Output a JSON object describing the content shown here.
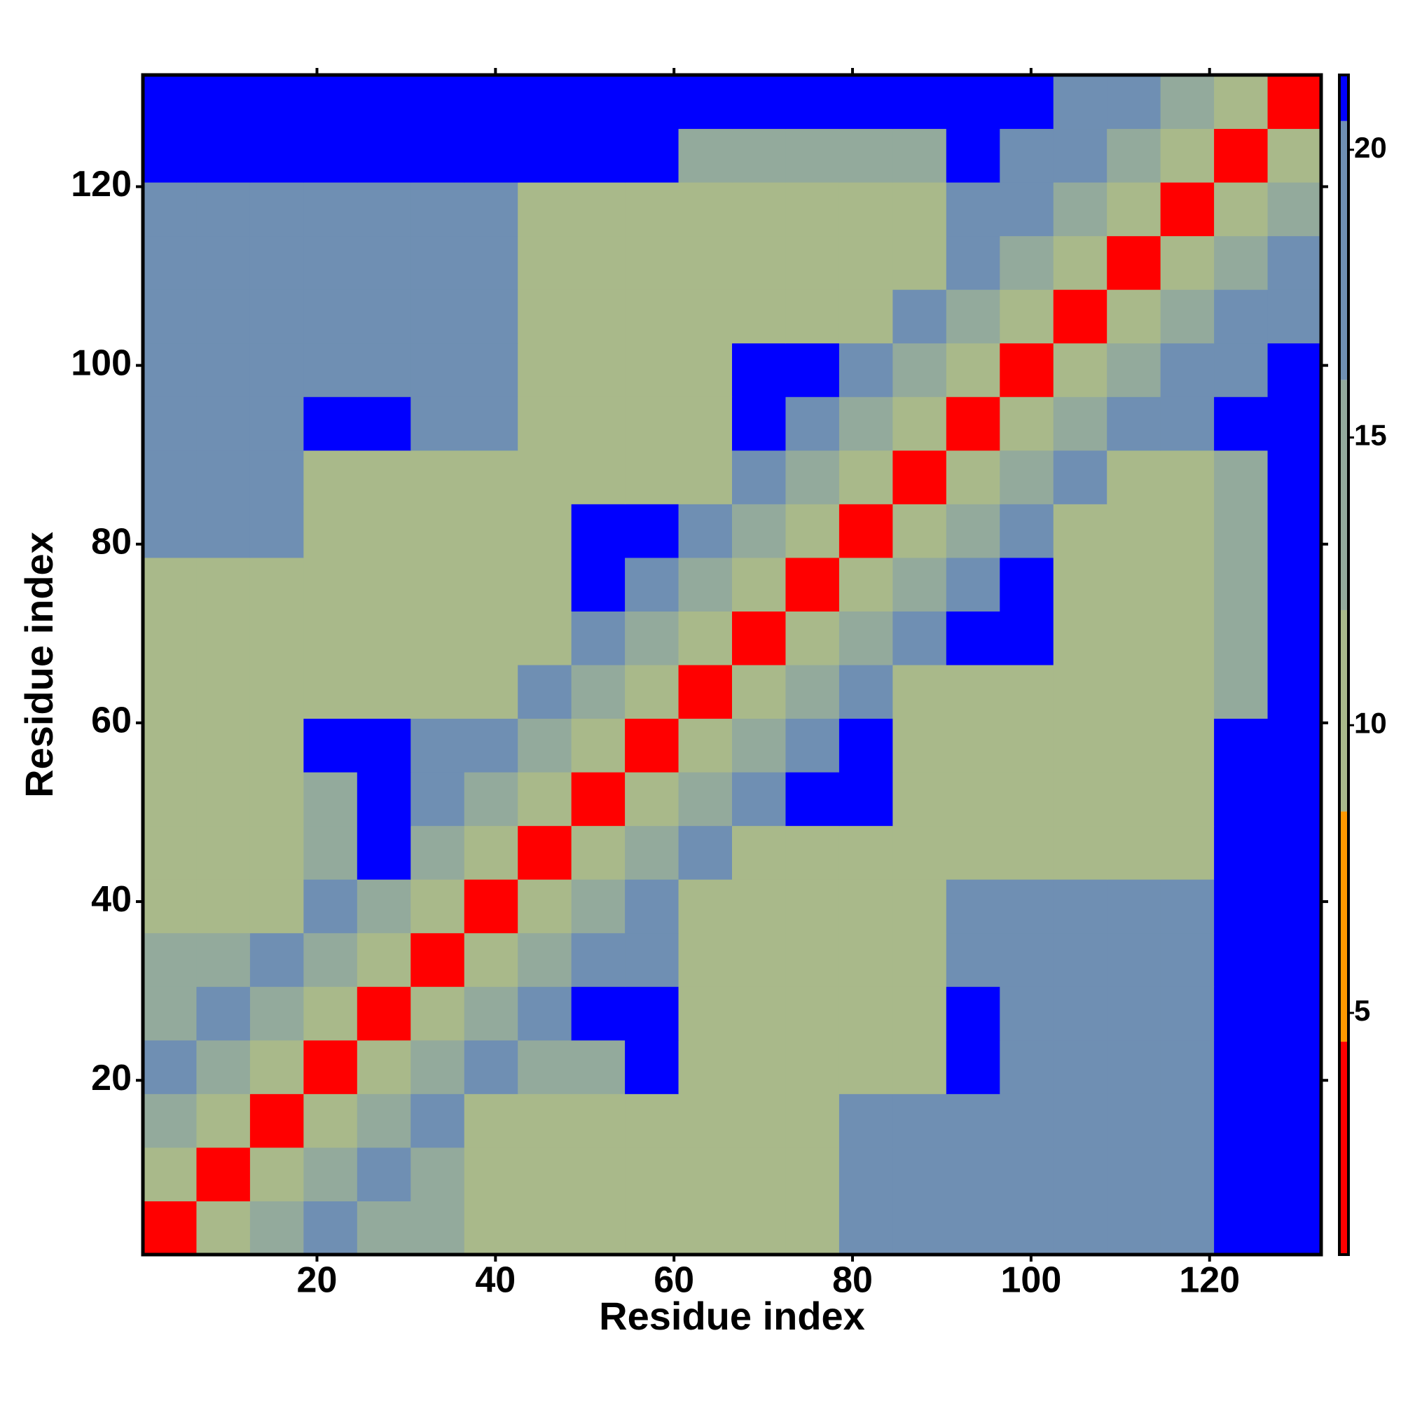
{
  "chart_data": {
    "type": "heatmap",
    "xlabel": "Residue index",
    "ylabel": "Residue index",
    "x": [
      3.5,
      9.5,
      15.5,
      21.5,
      27.5,
      33.5,
      39.5,
      45.5,
      51.5,
      57.5,
      63.5,
      69.5,
      75.5,
      81.5,
      87.5,
      93.5,
      99.5,
      105.5,
      111.5,
      117.5,
      123.5,
      129.5
    ],
    "y": [
      3.5,
      9.5,
      15.5,
      21.5,
      27.5,
      33.5,
      39.5,
      45.5,
      51.5,
      57.5,
      63.5,
      69.5,
      75.5,
      81.5,
      87.5,
      93.5,
      99.5,
      105.5,
      111.5,
      117.5,
      123.5,
      129.5
    ],
    "xlim": [
      0.5,
      132.5
    ],
    "ylim": [
      0.5,
      132.5
    ],
    "xticks": [
      20,
      40,
      60,
      80,
      100,
      120
    ],
    "yticks": [
      20,
      40,
      60,
      80,
      100,
      120
    ],
    "values": [
      [
        4,
        9,
        13,
        17,
        13,
        13,
        12,
        12,
        12,
        12,
        12,
        12,
        12,
        19,
        19,
        19,
        18,
        18,
        18,
        18,
        21,
        21
      ],
      [
        9,
        4,
        9,
        13,
        17,
        13,
        12,
        12,
        12,
        9,
        12,
        12,
        12,
        19,
        19,
        19,
        18,
        18,
        18,
        18,
        21,
        21
      ],
      [
        13,
        9,
        4,
        9,
        13,
        17,
        12,
        12,
        12,
        9,
        12,
        12,
        12,
        19,
        19,
        19,
        18,
        18,
        18,
        18,
        21,
        21
      ],
      [
        17,
        13,
        9,
        4,
        9,
        13,
        17,
        13,
        13,
        21,
        12,
        12,
        12,
        12,
        12,
        21,
        18,
        18,
        18,
        18,
        21,
        21
      ],
      [
        13,
        17,
        13,
        9,
        4,
        9,
        13,
        17,
        21,
        21,
        12,
        12,
        12,
        12,
        12,
        21,
        18,
        18,
        18,
        18,
        21,
        21
      ],
      [
        13,
        13,
        17,
        13,
        9,
        4,
        9,
        13,
        17,
        19,
        12,
        12,
        12,
        12,
        12,
        18,
        18,
        18,
        18,
        18,
        21,
        21
      ],
      [
        12,
        12,
        12,
        17,
        13,
        9,
        4,
        9,
        13,
        17,
        12,
        12,
        12,
        12,
        12,
        18,
        18,
        18,
        18,
        18,
        21,
        21
      ],
      [
        12,
        12,
        12,
        13,
        21,
        13,
        9,
        4,
        9,
        13,
        17,
        12,
        12,
        12,
        12,
        12,
        12,
        12,
        12,
        12,
        21,
        21
      ],
      [
        12,
        12,
        12,
        13,
        21,
        17,
        13,
        9,
        4,
        9,
        13,
        17,
        21,
        21,
        12,
        12,
        12,
        12,
        12,
        12,
        21,
        21
      ],
      [
        12,
        9,
        9,
        21,
        21,
        19,
        17,
        13,
        9,
        4,
        9,
        13,
        17,
        21,
        12,
        12,
        9,
        9,
        12,
        12,
        21,
        21
      ],
      [
        12,
        12,
        12,
        12,
        12,
        12,
        12,
        17,
        13,
        9,
        4,
        9,
        13,
        17,
        12,
        12,
        9,
        9,
        12,
        12,
        16,
        21
      ],
      [
        12,
        12,
        12,
        12,
        12,
        12,
        12,
        12,
        17,
        13,
        9,
        4,
        9,
        13,
        17,
        21,
        21,
        12,
        12,
        12,
        16,
        21
      ],
      [
        12,
        12,
        12,
        12,
        12,
        12,
        12,
        12,
        21,
        17,
        13,
        9,
        4,
        9,
        13,
        17,
        21,
        12,
        12,
        12,
        16,
        21
      ],
      [
        19,
        19,
        19,
        12,
        12,
        12,
        12,
        12,
        21,
        21,
        17,
        13,
        9,
        4,
        9,
        13,
        17,
        12,
        12,
        12,
        16,
        21
      ],
      [
        19,
        19,
        19,
        12,
        12,
        12,
        12,
        12,
        12,
        12,
        12,
        17,
        13,
        9,
        4,
        9,
        13,
        17,
        12,
        12,
        16,
        21
      ],
      [
        19,
        19,
        19,
        21,
        21,
        18,
        18,
        12,
        12,
        12,
        12,
        21,
        17,
        13,
        9,
        4,
        9,
        13,
        17,
        19,
        21,
        21
      ],
      [
        18,
        18,
        18,
        18,
        18,
        18,
        18,
        12,
        12,
        9,
        9,
        21,
        21,
        17,
        13,
        9,
        4,
        9,
        13,
        17,
        19,
        21
      ],
      [
        18,
        18,
        18,
        18,
        18,
        18,
        18,
        12,
        12,
        9,
        9,
        12,
        12,
        12,
        17,
        13,
        9,
        4,
        9,
        13,
        17,
        19
      ],
      [
        18,
        18,
        18,
        18,
        18,
        18,
        18,
        12,
        12,
        12,
        12,
        12,
        12,
        12,
        12,
        17,
        13,
        9,
        4,
        9,
        13,
        17
      ],
      [
        18,
        18,
        18,
        18,
        18,
        18,
        18,
        12,
        12,
        12,
        12,
        12,
        12,
        12,
        12,
        19,
        17,
        13,
        9,
        4,
        9,
        13
      ],
      [
        21,
        21,
        21,
        21,
        21,
        21,
        21,
        21,
        21,
        21,
        16,
        16,
        16,
        16,
        16,
        21,
        19,
        17,
        13,
        9,
        4,
        9
      ],
      [
        21,
        21,
        21,
        21,
        21,
        21,
        21,
        21,
        21,
        21,
        21,
        21,
        21,
        21,
        21,
        21,
        21,
        19,
        17,
        13,
        9,
        4
      ]
    ],
    "zlim": [
      0.8,
      21.3
    ],
    "zticks": [
      5,
      10,
      15,
      20
    ],
    "colorscale": [
      {
        "value": 4.5,
        "color": "#ff0000"
      },
      {
        "value": 8.5,
        "color": "#ff9900"
      },
      {
        "value": 12,
        "color": "#a9b98a"
      },
      {
        "value": 16,
        "color": "#93aa9c"
      },
      {
        "value": 20.5,
        "color": "#6f8fb3"
      },
      {
        "value": 21.3,
        "color": "#0000ff"
      }
    ]
  }
}
